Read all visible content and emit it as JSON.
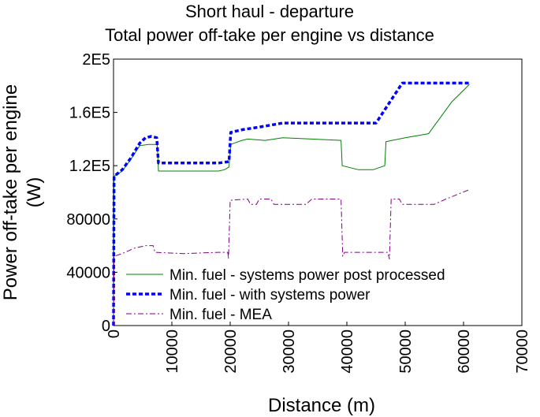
{
  "chart_data": {
    "type": "line",
    "title": "Short haul - departure",
    "subtitle": "Total power off-take per engine vs distance",
    "xlabel": "Distance (m)",
    "ylabel_line1": "Power off-take per engine",
    "ylabel_line2": "(W)",
    "xlim": [
      0,
      70000
    ],
    "ylim": [
      0,
      200000
    ],
    "x_ticks": [
      {
        "value": 0,
        "label": "0"
      },
      {
        "value": 10000,
        "label": "10000"
      },
      {
        "value": 20000,
        "label": "20000"
      },
      {
        "value": 30000,
        "label": "30000"
      },
      {
        "value": 40000,
        "label": "40000"
      },
      {
        "value": 50000,
        "label": "50000"
      },
      {
        "value": 60000,
        "label": "60000"
      },
      {
        "value": 70000,
        "label": "70000"
      }
    ],
    "y_ticks": [
      {
        "value": 0,
        "label": "0"
      },
      {
        "value": 40000,
        "label": "40000"
      },
      {
        "value": 80000,
        "label": "80000"
      },
      {
        "value": 120000,
        "label": "1.2E5"
      },
      {
        "value": 160000,
        "label": "1.6E5"
      },
      {
        "value": 200000,
        "label": "2E5"
      }
    ],
    "grid": false,
    "legend_position": "bottom-left",
    "series": [
      {
        "name": "Min. fuel - systems power post processed",
        "color": "#008000",
        "style": "solid",
        "points": [
          [
            0,
            0
          ],
          [
            100,
            112000
          ],
          [
            1500,
            116000
          ],
          [
            3000,
            125000
          ],
          [
            4500,
            135000
          ],
          [
            6000,
            136000
          ],
          [
            7500,
            136000
          ],
          [
            7700,
            116000
          ],
          [
            12000,
            116000
          ],
          [
            18000,
            116000
          ],
          [
            19000,
            117000
          ],
          [
            19800,
            119000
          ],
          [
            20100,
            136000
          ],
          [
            22000,
            139000
          ],
          [
            23000,
            140000
          ],
          [
            26000,
            139000
          ],
          [
            29000,
            141000
          ],
          [
            34000,
            140000
          ],
          [
            39000,
            139000
          ],
          [
            39200,
            120000
          ],
          [
            42000,
            117000
          ],
          [
            44500,
            117000
          ],
          [
            46500,
            120000
          ],
          [
            46700,
            138000
          ],
          [
            50000,
            141000
          ],
          [
            54000,
            144000
          ],
          [
            58000,
            168000
          ],
          [
            61000,
            181000
          ]
        ]
      },
      {
        "name": "Min. fuel - with systems power",
        "color": "#0000ff",
        "style": "dash",
        "points": [
          [
            0,
            0
          ],
          [
            100,
            112000
          ],
          [
            1500,
            117000
          ],
          [
            3000,
            126000
          ],
          [
            4500,
            137000
          ],
          [
            5500,
            141000
          ],
          [
            6500,
            142000
          ],
          [
            7400,
            141000
          ],
          [
            7700,
            122000
          ],
          [
            12000,
            122000
          ],
          [
            18000,
            122000
          ],
          [
            19800,
            123000
          ],
          [
            20100,
            145000
          ],
          [
            22000,
            147000
          ],
          [
            25000,
            149000
          ],
          [
            29000,
            152000
          ],
          [
            34000,
            152000
          ],
          [
            40000,
            152000
          ],
          [
            45000,
            152000
          ],
          [
            49500,
            182000
          ],
          [
            61000,
            182000
          ]
        ]
      },
      {
        "name": "Min. fuel - MEA",
        "color": "#800080",
        "style": "dashdot",
        "points": [
          [
            0,
            0
          ],
          [
            100,
            52000
          ],
          [
            1500,
            54000
          ],
          [
            3500,
            58000
          ],
          [
            5500,
            60000
          ],
          [
            6800,
            60000
          ],
          [
            7100,
            55000
          ],
          [
            12000,
            54000
          ],
          [
            18000,
            55000
          ],
          [
            19600,
            55000
          ],
          [
            19700,
            50000
          ],
          [
            20000,
            94000
          ],
          [
            23000,
            95000
          ],
          [
            23500,
            91000
          ],
          [
            24500,
            91000
          ],
          [
            25000,
            95000
          ],
          [
            27000,
            95000
          ],
          [
            27500,
            91000
          ],
          [
            33000,
            91000
          ],
          [
            34000,
            95000
          ],
          [
            39000,
            95000
          ],
          [
            39300,
            52000
          ],
          [
            39600,
            55000
          ],
          [
            45000,
            55000
          ],
          [
            47000,
            55000
          ],
          [
            47300,
            50000
          ],
          [
            47600,
            95000
          ],
          [
            49000,
            95000
          ],
          [
            49500,
            91000
          ],
          [
            55000,
            91000
          ],
          [
            57000,
            95000
          ],
          [
            61000,
            102000
          ]
        ]
      }
    ]
  }
}
